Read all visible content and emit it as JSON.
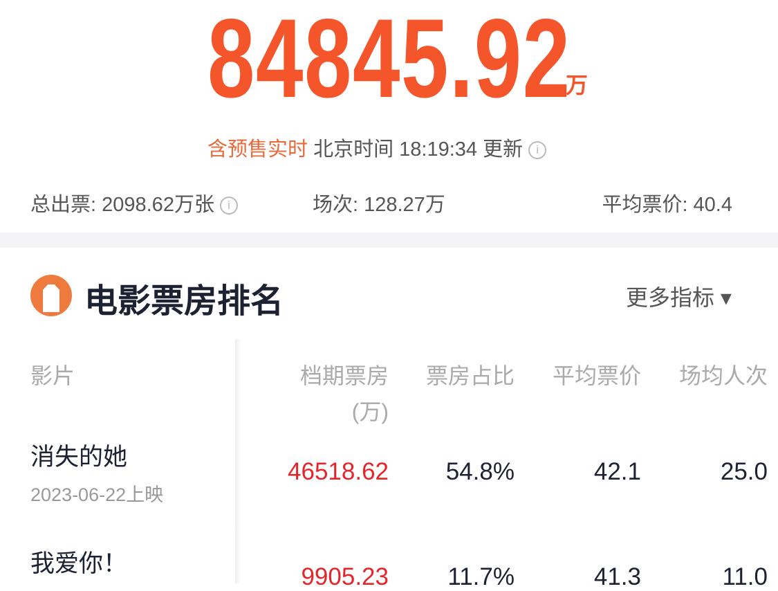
{
  "summary": {
    "total": "84845.92",
    "unit": "万",
    "presale": "含预售实时",
    "update_text": "北京时间 18:19:34 更新",
    "tickets": "总出票: 2098.62万张",
    "shows": "场次: 128.27万",
    "avg_price": "平均票价: 40.4"
  },
  "ranking": {
    "title": "电影票房排名",
    "more": "更多指标 ▾",
    "headers": {
      "film": "影片",
      "box": "档期票房",
      "box_unit": "(万)",
      "share": "票房占比",
      "avg": "平均票价",
      "per_show": "场均人次"
    },
    "rows": [
      {
        "name": "消失的她",
        "date": "2023-06-22上映",
        "box": "46518.62",
        "share": "54.8%",
        "avg": "42.1",
        "per_show": "25.0"
      },
      {
        "name": "我爱你！",
        "date": "",
        "box": "9905.23",
        "share": "11.7%",
        "avg": "41.3",
        "per_show": "11.0"
      }
    ]
  },
  "colors": {
    "accent": "#f5552a",
    "box_value": "#e4262b"
  }
}
